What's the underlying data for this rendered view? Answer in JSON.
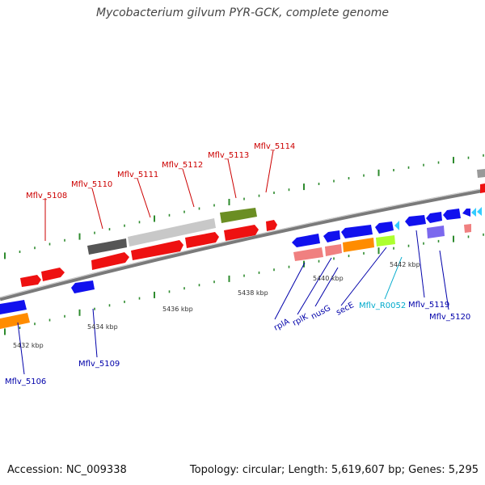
{
  "title": "Mycobacterium gilvum PYR-GCK, complete genome",
  "footer": {
    "accession": "Accession: NC_009338",
    "topology": "Topology: circular; Length: 5,619,607 bp; Genes: 5,295"
  },
  "colors": {
    "backbone": "#808080",
    "tick": "#2e8b2e",
    "label_forward": "#cc0000",
    "label_reverse": "#0000aa",
    "label_rna": "#00aacc"
  },
  "scale_labels": [
    "5432 kbp",
    "5434 kbp",
    "5436 kbp",
    "5438 kbp",
    "5440 kbp",
    "5442 kbp"
  ],
  "gene_labels_forward": [
    "Mflv_5108",
    "Mflv_5110",
    "Mflv_5111",
    "Mflv_5112",
    "Mflv_5113",
    "Mflv_5114"
  ],
  "gene_labels_reverse": [
    "Mflv_5106",
    "Mflv_5109",
    "rplA",
    "rplK",
    "nusG",
    "secE",
    "Mflv_R0052",
    "Mflv_5119",
    "Mflv_5120"
  ]
}
